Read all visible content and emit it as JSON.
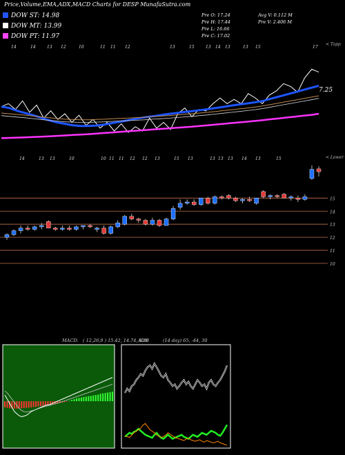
{
  "title": "Price,Volume,EMA,ADX,MACD Charts for DESP MunafaSutra.com",
  "legend": [
    {
      "label": "DOW ST: 14.98",
      "color": "#2255ff"
    },
    {
      "label": "DOW MT: 13.99",
      "color": "#ffffff"
    },
    {
      "label": "DOW PT: 11.97",
      "color": "#ff44ff"
    }
  ],
  "info": {
    "open": "Pre  O: 17.24",
    "high": "Pre  H: 17.44",
    "low": "Pre  L: 16.66",
    "close": "Pre  C: 17.02",
    "avg_vol": "Avg V: 0.112  M",
    "pre_vol": "Pre  V: 2.406  M"
  },
  "colors": {
    "up": "#1e6fff",
    "down": "#e23a3a",
    "ema_fast": "#1e55ff",
    "ema_pt": "#ff33ff",
    "level_line": "#c07050",
    "adx_green": "#22ee22",
    "adx_orange": "#ff8800"
  },
  "chart_data": [
    {
      "type": "line",
      "panel": "ema",
      "right_label": "7.25",
      "top_tick_labels": [
        "14",
        "14",
        "13",
        "12",
        "10",
        "11",
        "11",
        "12",
        "13",
        "15",
        "13",
        "14",
        "13",
        "13",
        "15",
        "17"
      ],
      "right_corner": "< Topp",
      "series": [
        {
          "role": "price",
          "color": "#ffffff",
          "values": [
            14.4,
            14.6,
            14.2,
            14.8,
            14.0,
            14.5,
            13.6,
            14.1,
            13.5,
            13.9,
            13.3,
            13.8,
            13.1,
            13.5,
            12.9,
            13.3,
            12.7,
            13.2,
            12.6,
            13.0,
            12.7,
            13.6,
            12.9,
            13.3,
            12.8,
            13.9,
            14.3,
            13.7,
            14.2,
            14.1,
            14.6,
            15.0,
            14.6,
            14.9,
            14.6,
            15.3,
            15.0,
            14.6,
            15.2,
            15.5,
            16.0,
            15.8,
            15.4,
            16.4,
            17.0,
            16.8
          ]
        },
        {
          "role": "ema-st",
          "color": "#1e55ff",
          "values": [
            14.4,
            14.3,
            14.1,
            13.95,
            13.8,
            13.62,
            13.45,
            13.3,
            13.2,
            13.1,
            13.05,
            13.05,
            13.08,
            13.15,
            13.25,
            13.35,
            13.45,
            13.55,
            13.65,
            13.72,
            13.8,
            13.88,
            13.95,
            14.02,
            14.08,
            14.15,
            14.22,
            14.3,
            14.38,
            14.47,
            14.55,
            14.62,
            14.7,
            14.8,
            14.95,
            15.1,
            15.25,
            15.4,
            15.55,
            15.7,
            15.85
          ]
        },
        {
          "role": "ema-mt",
          "color": "#c08a50",
          "values": [
            13.95,
            13.9,
            13.85,
            13.8,
            13.74,
            13.68,
            13.62,
            13.57,
            13.52,
            13.5,
            13.48,
            13.48,
            13.5,
            13.52,
            13.55,
            13.58,
            13.6,
            13.63,
            13.66,
            13.7,
            13.73,
            13.77,
            13.81,
            13.86,
            13.9,
            13.95,
            14.0,
            14.06,
            14.12,
            14.18,
            14.24,
            14.3,
            14.37,
            14.45,
            14.55,
            14.65,
            14.75,
            14.85,
            14.95,
            15.05,
            15.15
          ]
        },
        {
          "role": "ema-pt",
          "color": "#ff33ff",
          "values": [
            12.2,
            12.22,
            12.24,
            12.26,
            12.28,
            12.3,
            12.33,
            12.36,
            12.39,
            12.42,
            12.45,
            12.48,
            12.52,
            12.56,
            12.6,
            12.64,
            12.68,
            12.72,
            12.76,
            12.8,
            12.84,
            12.88,
            12.92,
            12.96,
            13.0,
            13.05,
            13.1,
            13.15,
            13.2,
            13.25,
            13.3,
            13.35,
            13.4,
            13.46,
            13.52,
            13.58,
            13.64,
            13.7,
            13.76,
            13.82,
            13.9
          ]
        }
      ]
    },
    {
      "type": "candlestick",
      "panel": "price",
      "right_corner": "< Lower",
      "top_tick_labels": [
        "14",
        "13",
        "13",
        "10",
        "10",
        "11",
        "11",
        "12",
        "12",
        "13",
        "15",
        "13",
        "13",
        "13",
        "13",
        "14",
        "13",
        "15"
      ],
      "price_levels": [
        15,
        14,
        13,
        12,
        11,
        10
      ],
      "ylim": [
        10,
        17.5
      ],
      "candles": [
        {
          "o": 12.0,
          "h": 12.3,
          "l": 11.8,
          "c": 12.2
        },
        {
          "o": 12.2,
          "h": 12.6,
          "l": 12.1,
          "c": 12.5
        },
        {
          "o": 12.5,
          "h": 12.9,
          "l": 12.3,
          "c": 12.7
        },
        {
          "o": 12.7,
          "h": 12.9,
          "l": 12.5,
          "c": 12.6
        },
        {
          "o": 12.6,
          "h": 12.9,
          "l": 12.5,
          "c": 12.8
        },
        {
          "o": 12.8,
          "h": 13.1,
          "l": 12.6,
          "c": 12.9
        },
        {
          "o": 13.2,
          "h": 13.3,
          "l": 12.7,
          "c": 12.7
        },
        {
          "o": 12.7,
          "h": 12.8,
          "l": 12.5,
          "c": 12.6
        },
        {
          "o": 12.6,
          "h": 12.9,
          "l": 12.5,
          "c": 12.7
        },
        {
          "o": 12.7,
          "h": 12.9,
          "l": 12.5,
          "c": 12.6
        },
        {
          "o": 12.6,
          "h": 12.9,
          "l": 12.5,
          "c": 12.8
        },
        {
          "o": 12.8,
          "h": 12.9,
          "l": 12.6,
          "c": 12.9
        },
        {
          "o": 12.9,
          "h": 13.0,
          "l": 12.7,
          "c": 12.8
        },
        {
          "o": 12.6,
          "h": 12.8,
          "l": 12.4,
          "c": 12.7
        },
        {
          "o": 12.7,
          "h": 12.9,
          "l": 12.2,
          "c": 12.3
        },
        {
          "o": 12.3,
          "h": 12.9,
          "l": 12.2,
          "c": 12.8
        },
        {
          "o": 12.8,
          "h": 13.3,
          "l": 12.7,
          "c": 13.1
        },
        {
          "o": 13.0,
          "h": 13.7,
          "l": 12.9,
          "c": 13.6
        },
        {
          "o": 13.6,
          "h": 13.8,
          "l": 13.3,
          "c": 13.4
        },
        {
          "o": 13.4,
          "h": 13.5,
          "l": 13.1,
          "c": 13.3
        },
        {
          "o": 13.3,
          "h": 13.4,
          "l": 12.9,
          "c": 13.0
        },
        {
          "o": 13.0,
          "h": 13.5,
          "l": 12.9,
          "c": 13.3
        },
        {
          "o": 13.3,
          "h": 13.4,
          "l": 12.8,
          "c": 12.9
        },
        {
          "o": 12.9,
          "h": 13.5,
          "l": 12.9,
          "c": 13.4
        },
        {
          "o": 13.4,
          "h": 14.4,
          "l": 13.3,
          "c": 14.2
        },
        {
          "o": 14.3,
          "h": 14.9,
          "l": 14.1,
          "c": 14.6
        },
        {
          "o": 14.6,
          "h": 14.9,
          "l": 14.5,
          "c": 14.7
        },
        {
          "o": 14.7,
          "h": 14.9,
          "l": 14.4,
          "c": 14.5
        },
        {
          "o": 14.5,
          "h": 15.0,
          "l": 14.4,
          "c": 15.0
        },
        {
          "o": 15.0,
          "h": 15.1,
          "l": 14.5,
          "c": 14.6
        },
        {
          "o": 14.6,
          "h": 15.2,
          "l": 14.5,
          "c": 15.1
        },
        {
          "o": 15.1,
          "h": 15.2,
          "l": 14.9,
          "c": 15.0
        },
        {
          "o": 15.2,
          "h": 15.3,
          "l": 14.9,
          "c": 15.0
        },
        {
          "o": 15.0,
          "h": 15.1,
          "l": 14.7,
          "c": 14.8
        },
        {
          "o": 14.8,
          "h": 15.0,
          "l": 14.6,
          "c": 14.9
        },
        {
          "o": 14.9,
          "h": 15.1,
          "l": 14.7,
          "c": 14.8
        },
        {
          "o": 14.6,
          "h": 15.0,
          "l": 14.5,
          "c": 15.0
        },
        {
          "o": 15.5,
          "h": 15.6,
          "l": 15.0,
          "c": 15.1
        },
        {
          "o": 15.1,
          "h": 15.3,
          "l": 14.9,
          "c": 15.2
        },
        {
          "o": 15.2,
          "h": 15.3,
          "l": 15.0,
          "c": 15.1
        },
        {
          "o": 15.3,
          "h": 15.4,
          "l": 15.0,
          "c": 15.0
        },
        {
          "o": 15.0,
          "h": 15.2,
          "l": 14.8,
          "c": 15.1
        },
        {
          "o": 15.0,
          "h": 15.2,
          "l": 14.7,
          "c": 14.9
        },
        {
          "o": 14.9,
          "h": 15.3,
          "l": 14.8,
          "c": 15.1
        },
        {
          "o": 16.5,
          "h": 17.5,
          "l": 16.4,
          "c": 17.2
        },
        {
          "o": 17.24,
          "h": 17.44,
          "l": 16.66,
          "c": 17.02
        }
      ]
    },
    {
      "type": "macd",
      "panel": "macd",
      "label": "MACD:",
      "params": "( 12,26,9 ) 15.42,  14.74,  0.68",
      "histogram": [
        -0.3,
        -0.32,
        -0.34,
        -0.35,
        -0.36,
        -0.36,
        -0.35,
        -0.34,
        -0.33,
        -0.32,
        -0.31,
        -0.3,
        -0.28,
        -0.27,
        -0.25,
        -0.24,
        -0.22,
        -0.2,
        -0.18,
        -0.16,
        -0.14,
        -0.12,
        -0.1,
        -0.08,
        -0.06,
        -0.04,
        -0.02,
        0.02,
        0.06,
        0.1,
        0.14,
        0.16,
        0.18,
        0.2,
        0.22,
        0.24,
        0.26,
        0.28,
        0.3,
        0.32,
        0.36,
        0.38,
        0.4,
        0.42,
        0.44,
        0.46
      ],
      "macd_line": [
        0.3,
        0.1,
        -0.1,
        -0.3,
        -0.5,
        -0.6,
        -0.7,
        -0.75,
        -0.72,
        -0.68,
        -0.6,
        -0.5,
        -0.45,
        -0.4,
        -0.35,
        -0.3,
        -0.25,
        -0.2,
        -0.18,
        -0.15,
        -0.1,
        -0.05,
        0.0,
        0.05,
        0.1,
        0.15,
        0.2,
        0.25,
        0.3,
        0.35,
        0.4,
        0.45,
        0.5,
        0.55,
        0.6,
        0.65,
        0.7,
        0.75,
        0.8,
        0.85,
        0.9,
        0.95,
        1.0,
        1.05,
        1.1,
        1.15
      ],
      "signal_line": [
        0.5,
        0.4,
        0.25,
        0.1,
        -0.05,
        -0.2,
        -0.35,
        -0.45,
        -0.5,
        -0.52,
        -0.5,
        -0.47,
        -0.44,
        -0.4,
        -0.36,
        -0.32,
        -0.28,
        -0.25,
        -0.22,
        -0.19,
        -0.16,
        -0.13,
        -0.1,
        -0.06,
        -0.02,
        0.02,
        0.06,
        0.1,
        0.14,
        0.18,
        0.22,
        0.26,
        0.3,
        0.34,
        0.38,
        0.42,
        0.46,
        0.5,
        0.54,
        0.58,
        0.62,
        0.66,
        0.7,
        0.74,
        0.78,
        0.82
      ]
    },
    {
      "type": "adx",
      "panel": "adx",
      "label": "ADX",
      "params": "(14  day) 65,  -44,  30",
      "adx": [
        40,
        45,
        42,
        48,
        50,
        55,
        58,
        62,
        60,
        66,
        70,
        72,
        68,
        74,
        70,
        65,
        60,
        58,
        62,
        55,
        52,
        48,
        50,
        45,
        48,
        52,
        55,
        50,
        53,
        48,
        45,
        50,
        55,
        52,
        48,
        50,
        45,
        52,
        55,
        50,
        48,
        52,
        55,
        60,
        65,
        72
      ],
      "plus_di": [
        10,
        12,
        14,
        13,
        15,
        16,
        18,
        16,
        14,
        12,
        11,
        10,
        9,
        12,
        14,
        11,
        9,
        8,
        10,
        12,
        10,
        8,
        9,
        10,
        11,
        12,
        10,
        9,
        8,
        10,
        12,
        11,
        10,
        12,
        14,
        13,
        12,
        14,
        16,
        15,
        14,
        12,
        11,
        14,
        18,
        22
      ],
      "minus_di": [
        14,
        13,
        12,
        15,
        18,
        20,
        22,
        24,
        28,
        30,
        26,
        22,
        20,
        18,
        15,
        14,
        12,
        13,
        15,
        18,
        16,
        14,
        12,
        11,
        10,
        9,
        8,
        10,
        11,
        9,
        8,
        7,
        8,
        9,
        7,
        6,
        8,
        7,
        6,
        5,
        6,
        7,
        5,
        4,
        3,
        2
      ]
    }
  ]
}
